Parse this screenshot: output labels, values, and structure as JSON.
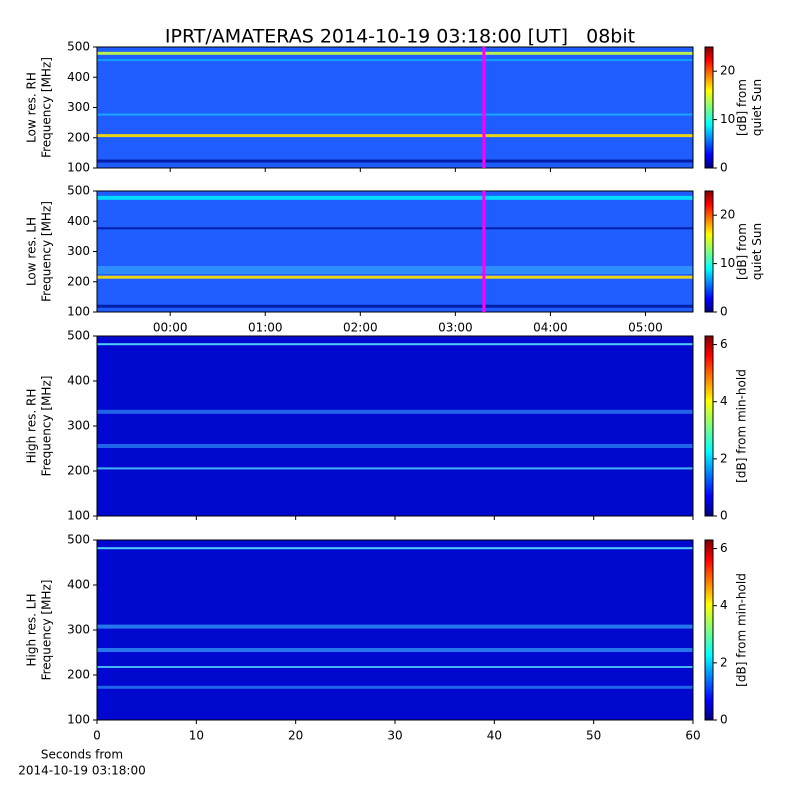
{
  "chart_data": [
    {
      "type": "heatmap",
      "title": "IPRT/AMATERAS 2014-10-19 03:18:00 [UT]   08bit",
      "ylabel": [
        "Low res. RH",
        "Frequency [MHz]"
      ],
      "ylim": [
        100,
        500
      ],
      "yticks": [
        100,
        200,
        300,
        400,
        500
      ],
      "colormap": "jet",
      "clim": [
        0,
        25
      ],
      "cticks": [
        0,
        10,
        20
      ],
      "clabel": [
        "[dB] from",
        "quiet Sun"
      ],
      "marker_x": 3.3,
      "marker_color": "#ff00ff"
    },
    {
      "type": "heatmap",
      "ylabel": [
        "Low res. LH",
        "Frequency [MHz]"
      ],
      "ylim": [
        100,
        500
      ],
      "yticks": [
        100,
        200,
        300,
        400,
        500
      ],
      "xlim": [
        -0.77,
        5.5
      ],
      "xticks": [
        {
          "value": 0,
          "label": "00:00"
        },
        {
          "value": 1,
          "label": "01:00"
        },
        {
          "value": 2,
          "label": "02:00"
        },
        {
          "value": 3,
          "label": "03:00"
        },
        {
          "value": 4,
          "label": "04:00"
        },
        {
          "value": 5,
          "label": "05:00"
        }
      ],
      "colormap": "jet",
      "clim": [
        0,
        25
      ],
      "cticks": [
        0,
        10,
        20
      ],
      "clabel": [
        "[dB] from",
        "quiet Sun"
      ],
      "marker_x": 3.3,
      "marker_color": "#ff00ff"
    },
    {
      "type": "heatmap",
      "ylabel": [
        "High res. RH",
        "Frequency [MHz]"
      ],
      "ylim": [
        100,
        500
      ],
      "yticks": [
        100,
        200,
        300,
        400,
        500
      ],
      "colormap": "jet",
      "clim": [
        0,
        6.3
      ],
      "cticks": [
        0,
        2,
        4,
        6
      ],
      "clabel": [
        "[dB] from min-hold"
      ]
    },
    {
      "type": "heatmap",
      "ylabel": [
        "High res. LH",
        "Frequency [MHz]"
      ],
      "ylim": [
        100,
        500
      ],
      "yticks": [
        100,
        200,
        300,
        400,
        500
      ],
      "xlim": [
        0,
        60
      ],
      "xticks": [
        0,
        10,
        20,
        30,
        40,
        50,
        60
      ],
      "xlabel": [
        "Seconds from",
        "2014-10-19 03:18:00"
      ],
      "colormap": "jet",
      "clim": [
        0,
        6.3
      ],
      "cticks": [
        0,
        2,
        4,
        6
      ],
      "clabel": [
        "[dB] from min-hold"
      ]
    }
  ]
}
